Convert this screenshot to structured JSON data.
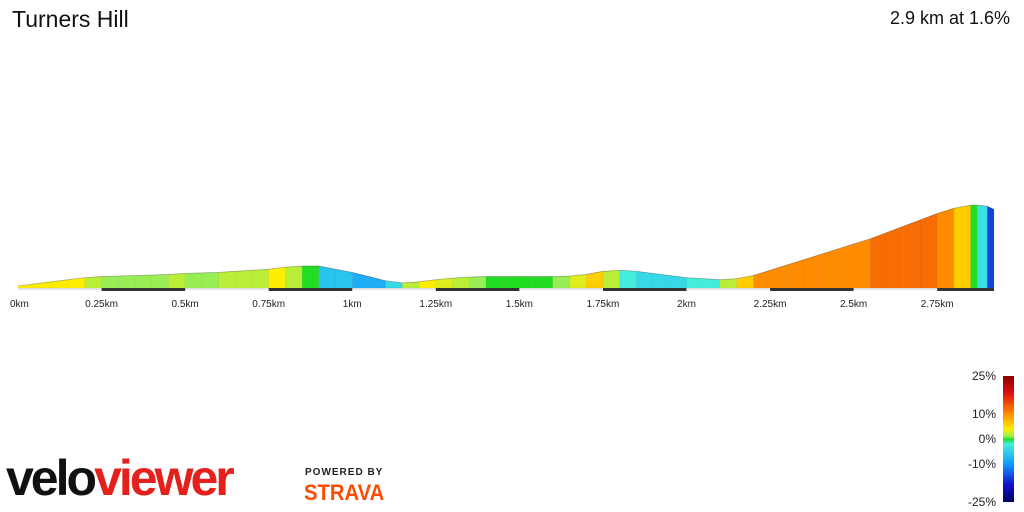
{
  "header": {
    "title": "Turners Hill",
    "summary": "2.9 km at 1.6%"
  },
  "chart_data": {
    "type": "area",
    "title": "Turners Hill",
    "xlabel": "",
    "ylabel": "",
    "x_unit": "km",
    "xlim": [
      0,
      2.92
    ],
    "x_ticks": [
      {
        "value": 0,
        "label": "0km"
      },
      {
        "value": 0.25,
        "label": "0.25km"
      },
      {
        "value": 0.5,
        "label": "0.5km"
      },
      {
        "value": 0.75,
        "label": "0.75km"
      },
      {
        "value": 1.0,
        "label": "1km"
      },
      {
        "value": 1.25,
        "label": "1.25km"
      },
      {
        "value": 1.5,
        "label": "1.5km"
      },
      {
        "value": 1.75,
        "label": "1.75km"
      },
      {
        "value": 2.0,
        "label": "2km"
      },
      {
        "value": 2.25,
        "label": "2.25km"
      },
      {
        "value": 2.5,
        "label": "2.5km"
      },
      {
        "value": 2.75,
        "label": "2.75km"
      }
    ],
    "profile": {
      "x": [
        0,
        0.05,
        0.1,
        0.15,
        0.2,
        0.25,
        0.3,
        0.35,
        0.4,
        0.45,
        0.5,
        0.55,
        0.6,
        0.65,
        0.7,
        0.75,
        0.8,
        0.85,
        0.9,
        0.95,
        1.0,
        1.05,
        1.1,
        1.15,
        1.2,
        1.25,
        1.3,
        1.35,
        1.4,
        1.45,
        1.5,
        1.55,
        1.6,
        1.65,
        1.7,
        1.75,
        1.8,
        1.85,
        1.9,
        1.95,
        2.0,
        2.05,
        2.1,
        2.15,
        2.2,
        2.25,
        2.3,
        2.35,
        2.4,
        2.45,
        2.5,
        2.55,
        2.6,
        2.65,
        2.7,
        2.75,
        2.8,
        2.85,
        2.87,
        2.9,
        2.92
      ],
      "elevation": [
        0,
        2,
        4,
        6,
        8,
        9,
        9.5,
        10,
        10.5,
        11,
        12,
        12.5,
        13,
        14,
        15,
        16,
        18,
        19,
        19,
        16,
        13,
        9,
        5,
        3,
        4,
        6,
        7.5,
        8.5,
        9,
        9,
        9,
        9,
        9,
        9.5,
        11,
        14,
        15,
        14,
        12,
        10,
        8,
        7,
        6,
        7,
        10,
        15,
        20,
        25,
        30,
        35,
        40,
        45,
        51,
        57,
        63,
        69,
        74,
        77,
        77,
        76,
        73
      ]
    },
    "grade_scale": {
      "labels": [
        "25%",
        "10%",
        "0%",
        "-10%",
        "-25%"
      ],
      "values": [
        25,
        10,
        0,
        -10,
        -25
      ],
      "colors": [
        {
          "value": 25,
          "color": "#8b0000"
        },
        {
          "value": 18,
          "color": "#e01010"
        },
        {
          "value": 10,
          "color": "#ff8c00"
        },
        {
          "value": 4,
          "color": "#ffee00"
        },
        {
          "value": 1,
          "color": "#99ee55"
        },
        {
          "value": 0,
          "color": "#22dd22"
        },
        {
          "value": -2,
          "color": "#44eedd"
        },
        {
          "value": -10,
          "color": "#1199ff"
        },
        {
          "value": -18,
          "color": "#1111cc"
        },
        {
          "value": -25,
          "color": "#000066"
        }
      ]
    },
    "grid": false,
    "legend": "bottom-right"
  },
  "branding": {
    "logo_part1": "velo",
    "logo_part2": "viewer",
    "powered_by": "POWERED BY",
    "strava": "STRAVA"
  }
}
